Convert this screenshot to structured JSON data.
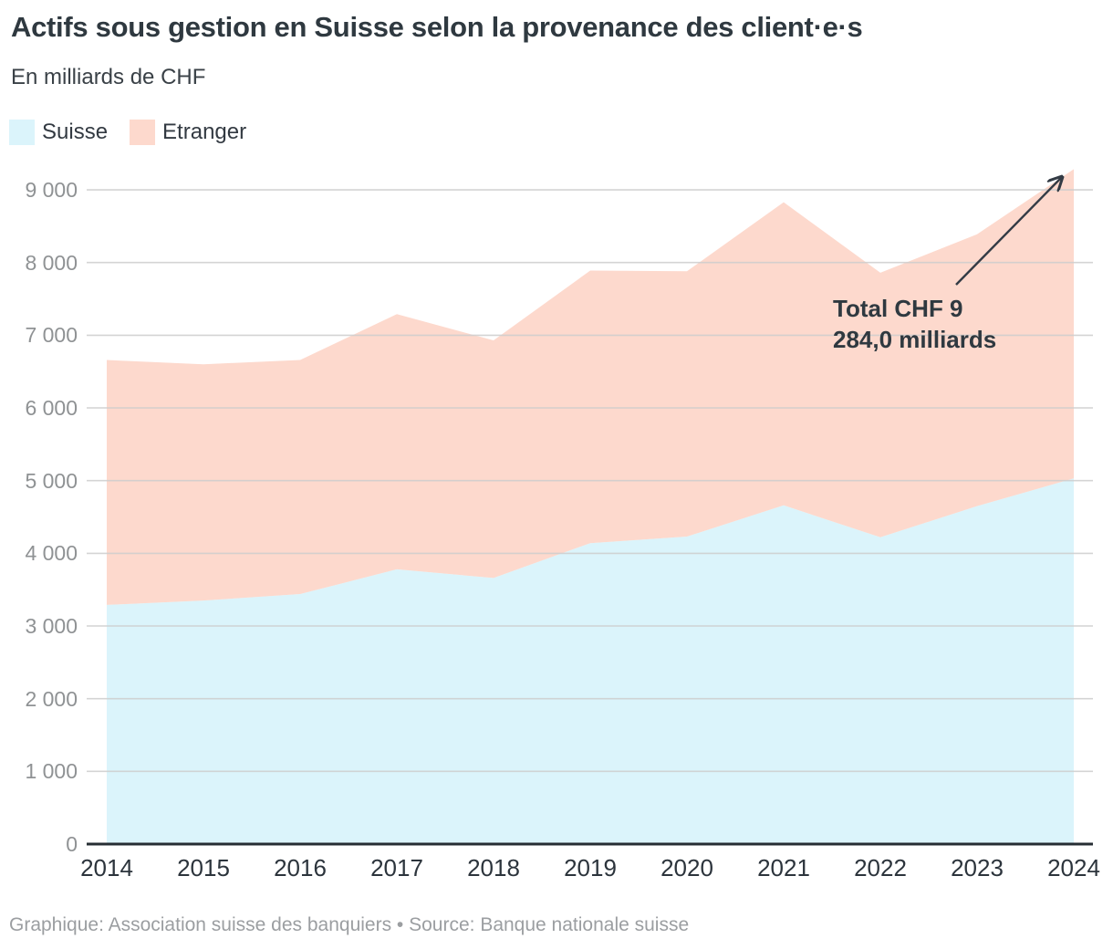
{
  "header": {
    "title": "Actifs sous gestion en Suisse selon la provenance des client·e·s",
    "subtitle": "En milliards de CHF"
  },
  "legend": [
    {
      "label": "Suisse",
      "color": "#dbf4fb"
    },
    {
      "label": "Etranger",
      "color": "#fdd9cd"
    }
  ],
  "annotation": {
    "line1": "Total CHF 9",
    "line2": "284,0 milliards"
  },
  "footer": {
    "text": "Graphique: Association suisse des banquiers • Source: Banque nationale suisse"
  },
  "colors": {
    "suisse_fill": "#dbf4fb",
    "etranger_fill": "#fdd9cd",
    "gridline": "#cdcdcd",
    "axis_line": "#262d33",
    "arrow": "#333b45",
    "text_dark": "#2f3940",
    "text_gray": "#8f9294"
  },
  "chart_data": {
    "type": "area",
    "stacked": true,
    "title": "Actifs sous gestion en Suisse selon la provenance des client·e·s",
    "subtitle_unit": "En milliards de CHF",
    "categories": [
      "2014",
      "2015",
      "2016",
      "2017",
      "2018",
      "2019",
      "2020",
      "2021",
      "2022",
      "2023",
      "2024"
    ],
    "series": [
      {
        "name": "Suisse",
        "color": "#dbf4fb",
        "values": [
          3290,
          3350,
          3440,
          3780,
          3660,
          4140,
          4230,
          4660,
          4220,
          4650,
          5030
        ]
      },
      {
        "name": "Etranger",
        "color": "#fdd9cd",
        "values": [
          3370,
          3250,
          3220,
          3510,
          3270,
          3750,
          3650,
          4170,
          3640,
          3740,
          4254
        ]
      }
    ],
    "totals": [
      6660,
      6600,
      6660,
      7290,
      6930,
      7890,
      7880,
      8830,
      7860,
      8390,
      9284
    ],
    "highlighted_total_2024": "9 284,0",
    "ylim": [
      0,
      9400
    ],
    "y_tick_values": [
      0,
      1000,
      2000,
      3000,
      4000,
      5000,
      6000,
      7000,
      8000,
      9000
    ],
    "y_tick_labels": [
      "0",
      "1 000",
      "2 000",
      "3 000",
      "4 000",
      "5 000",
      "6 000",
      "7 000",
      "8 000",
      "9 000"
    ],
    "grid": true,
    "legend_position": "top-left"
  }
}
